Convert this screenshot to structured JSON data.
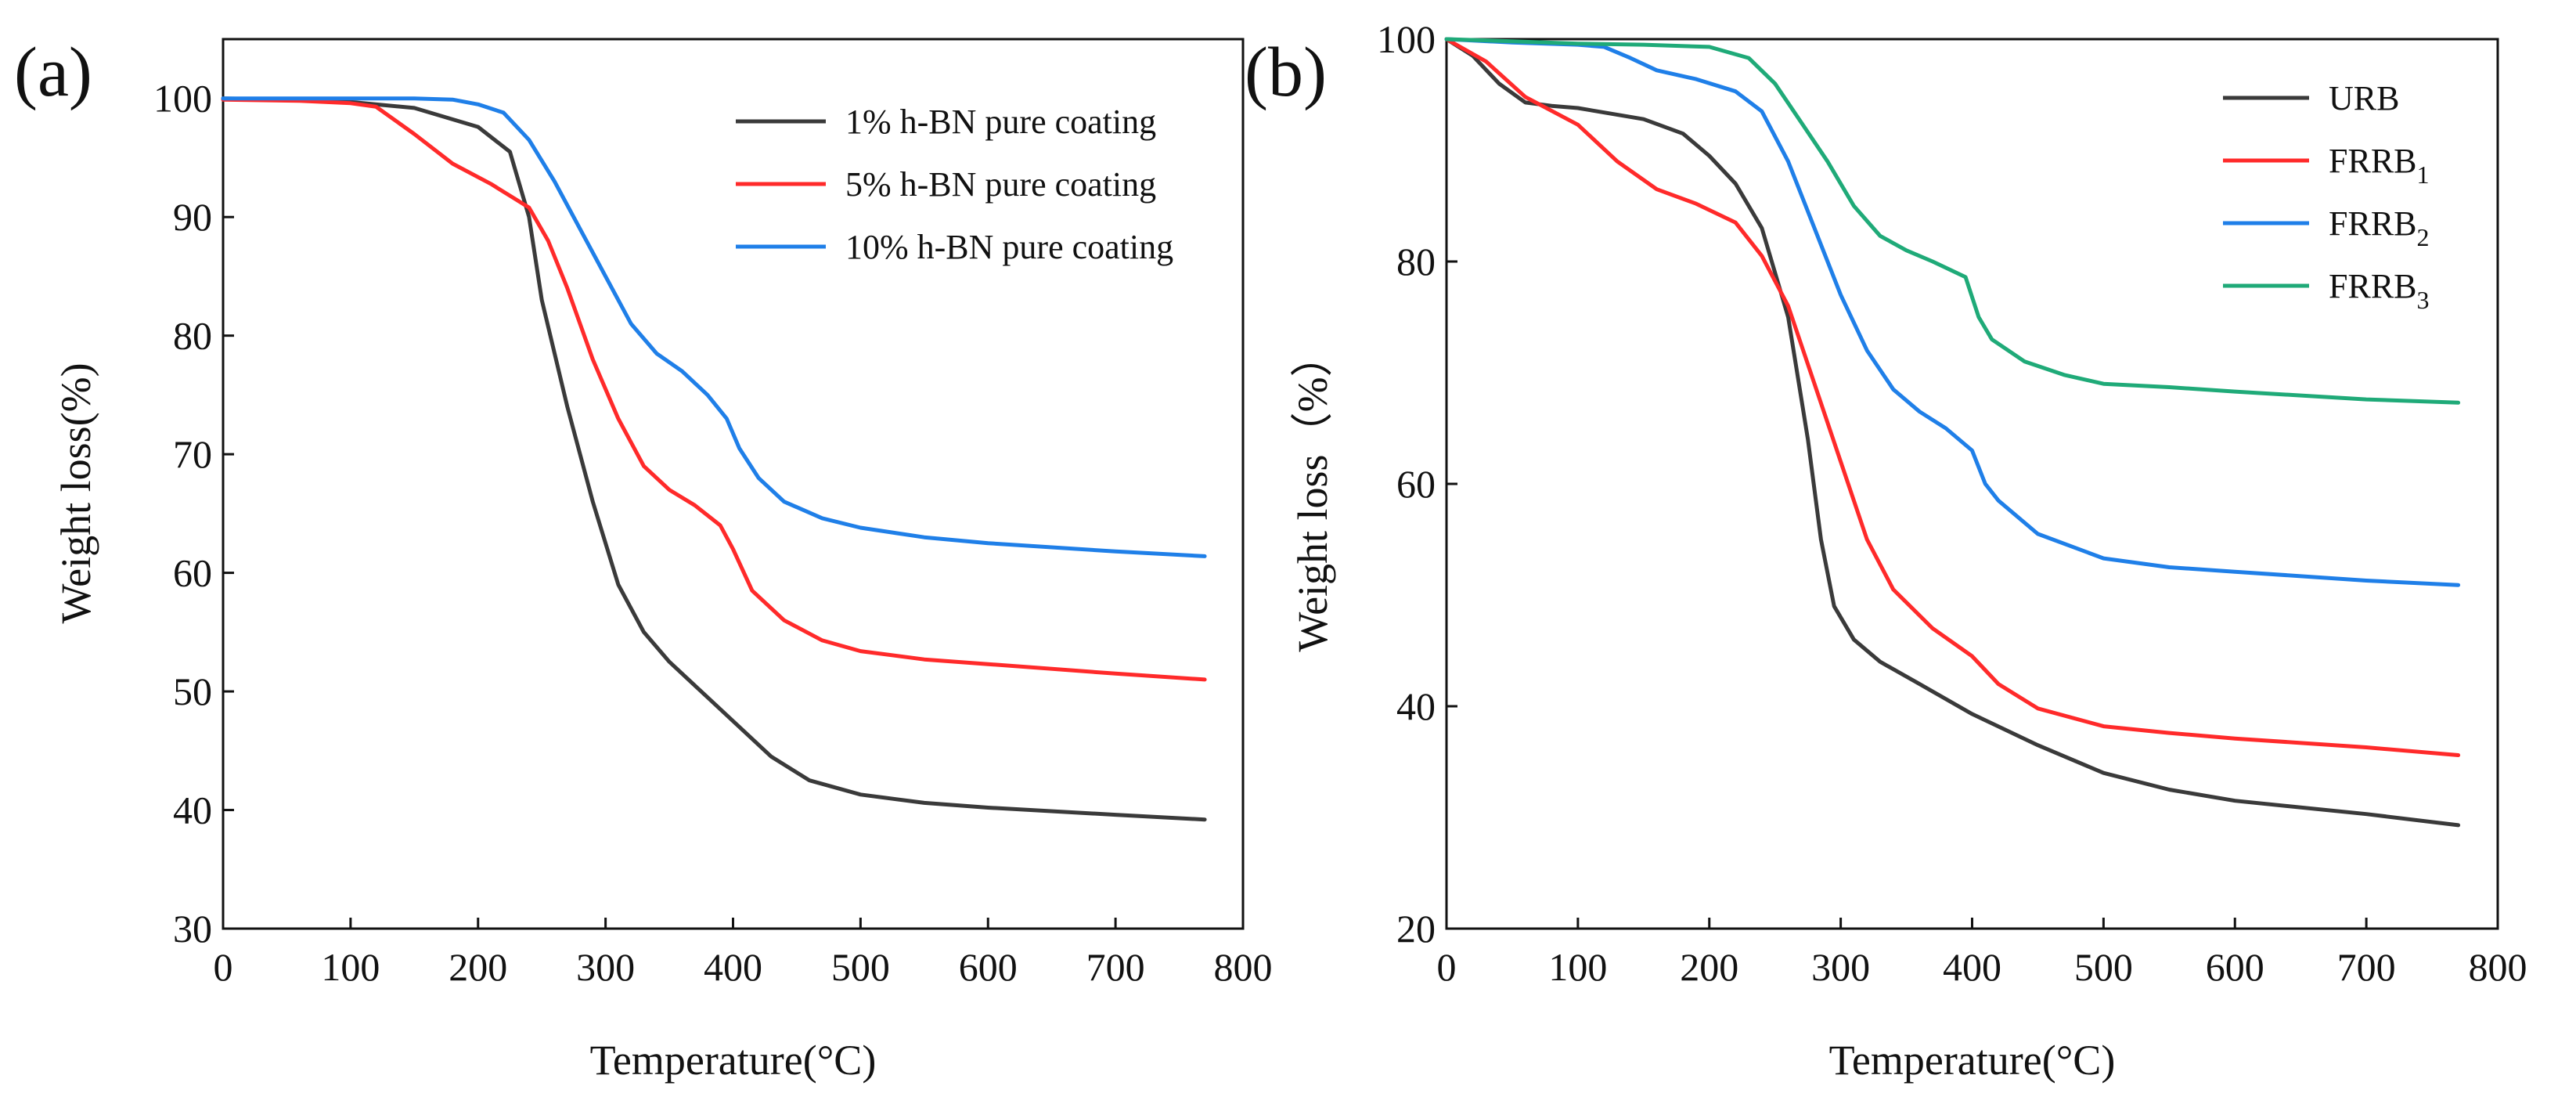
{
  "chart_data": [
    {
      "panel": "(a)",
      "type": "line",
      "title": "",
      "xlabel": "Temperature(°C)",
      "ylabel": "Weight loss(%)",
      "xlim": [
        0,
        800
      ],
      "ylim": [
        30,
        105
      ],
      "xticks": [
        0,
        100,
        200,
        300,
        400,
        500,
        600,
        700,
        800
      ],
      "yticks": [
        30,
        40,
        50,
        60,
        70,
        80,
        90,
        100
      ],
      "grid": false,
      "legend_position": "top-right",
      "series": [
        {
          "name": "1% h-BN pure coating",
          "label_main": "1% h-BN pure coating",
          "color": "#3a3a3a",
          "points": [
            [
              0,
              100
            ],
            [
              60,
              99.9
            ],
            [
              100,
              99.7
            ],
            [
              150,
              99.2
            ],
            [
              200,
              97.6
            ],
            [
              225,
              95.5
            ],
            [
              240,
              90
            ],
            [
              250,
              83
            ],
            [
              270,
              74
            ],
            [
              290,
              66
            ],
            [
              310,
              59
            ],
            [
              330,
              55
            ],
            [
              350,
              52.5
            ],
            [
              380,
              49.5
            ],
            [
              400,
              47.5
            ],
            [
              430,
              44.5
            ],
            [
              460,
              42.5
            ],
            [
              500,
              41.3
            ],
            [
              550,
              40.6
            ],
            [
              600,
              40.2
            ],
            [
              700,
              39.6
            ],
            [
              770,
              39.2
            ]
          ]
        },
        {
          "name": "5% h-BN pure coating",
          "label_main": "5% h-BN pure coating",
          "color": "#ff2a2a",
          "points": [
            [
              0,
              99.9
            ],
            [
              60,
              99.8
            ],
            [
              100,
              99.6
            ],
            [
              120,
              99.3
            ],
            [
              150,
              97
            ],
            [
              180,
              94.5
            ],
            [
              210,
              92.8
            ],
            [
              240,
              90.8
            ],
            [
              255,
              88
            ],
            [
              270,
              84
            ],
            [
              290,
              78
            ],
            [
              310,
              73
            ],
            [
              330,
              69
            ],
            [
              350,
              67
            ],
            [
              370,
              65.7
            ],
            [
              390,
              64
            ],
            [
              400,
              62
            ],
            [
              415,
              58.5
            ],
            [
              440,
              56
            ],
            [
              470,
              54.3
            ],
            [
              500,
              53.4
            ],
            [
              550,
              52.7
            ],
            [
              600,
              52.3
            ],
            [
              700,
              51.5
            ],
            [
              770,
              51
            ]
          ]
        },
        {
          "name": "10% h-BN pure coating",
          "label_main": "10% h-BN pure coating",
          "color": "#1f7fe8",
          "points": [
            [
              0,
              100
            ],
            [
              50,
              100
            ],
            [
              100,
              100
            ],
            [
              150,
              100
            ],
            [
              180,
              99.9
            ],
            [
              200,
              99.5
            ],
            [
              220,
              98.8
            ],
            [
              240,
              96.5
            ],
            [
              260,
              93
            ],
            [
              280,
              89
            ],
            [
              300,
              85
            ],
            [
              320,
              81
            ],
            [
              340,
              78.5
            ],
            [
              360,
              77
            ],
            [
              380,
              75
            ],
            [
              395,
              73
            ],
            [
              405,
              70.5
            ],
            [
              420,
              68
            ],
            [
              440,
              66
            ],
            [
              470,
              64.6
            ],
            [
              500,
              63.8
            ],
            [
              550,
              63
            ],
            [
              600,
              62.5
            ],
            [
              700,
              61.8
            ],
            [
              770,
              61.4
            ]
          ]
        }
      ]
    },
    {
      "panel": "(b)",
      "type": "line",
      "title": "",
      "xlabel": "Temperature(°C)",
      "ylabel": "Weight loss（%）",
      "xlim": [
        0,
        800
      ],
      "ylim": [
        20,
        100
      ],
      "xticks": [
        0,
        100,
        200,
        300,
        400,
        500,
        600,
        700,
        800
      ],
      "yticks": [
        20,
        40,
        60,
        80,
        100
      ],
      "grid": false,
      "legend_position": "top-right",
      "series": [
        {
          "name": "URB",
          "label_main": "URB",
          "label_sub": "",
          "color": "#3a3a3a",
          "points": [
            [
              0,
              100
            ],
            [
              20,
              98.5
            ],
            [
              40,
              96
            ],
            [
              60,
              94.3
            ],
            [
              80,
              94
            ],
            [
              100,
              93.8
            ],
            [
              150,
              92.8
            ],
            [
              180,
              91.5
            ],
            [
              200,
              89.5
            ],
            [
              220,
              87
            ],
            [
              240,
              83
            ],
            [
              260,
              75
            ],
            [
              275,
              64
            ],
            [
              285,
              55
            ],
            [
              295,
              49
            ],
            [
              310,
              46
            ],
            [
              330,
              44
            ],
            [
              360,
              42
            ],
            [
              400,
              39.3
            ],
            [
              450,
              36.5
            ],
            [
              500,
              34
            ],
            [
              550,
              32.5
            ],
            [
              600,
              31.5
            ],
            [
              700,
              30.3
            ],
            [
              770,
              29.3
            ]
          ]
        },
        {
          "name": "FRRB1",
          "label_main": "FRRB",
          "label_sub": "1",
          "color": "#ff2a2a",
          "points": [
            [
              0,
              100
            ],
            [
              30,
              98
            ],
            [
              60,
              94.8
            ],
            [
              100,
              92.3
            ],
            [
              130,
              89
            ],
            [
              160,
              86.5
            ],
            [
              190,
              85.2
            ],
            [
              220,
              83.5
            ],
            [
              240,
              80.5
            ],
            [
              260,
              76
            ],
            [
              280,
              69
            ],
            [
              300,
              62
            ],
            [
              320,
              55
            ],
            [
              340,
              50.5
            ],
            [
              370,
              47
            ],
            [
              400,
              44.5
            ],
            [
              420,
              42
            ],
            [
              450,
              39.8
            ],
            [
              500,
              38.2
            ],
            [
              550,
              37.6
            ],
            [
              600,
              37.1
            ],
            [
              700,
              36.3
            ],
            [
              770,
              35.6
            ]
          ]
        },
        {
          "name": "FRRB2",
          "label_main": "FRRB",
          "label_sub": "2",
          "color": "#1f7fe8",
          "points": [
            [
              0,
              100
            ],
            [
              50,
              99.7
            ],
            [
              100,
              99.5
            ],
            [
              120,
              99.3
            ],
            [
              140,
              98.3
            ],
            [
              160,
              97.2
            ],
            [
              190,
              96.4
            ],
            [
              220,
              95.3
            ],
            [
              240,
              93.5
            ],
            [
              260,
              89
            ],
            [
              280,
              83
            ],
            [
              300,
              77
            ],
            [
              320,
              72
            ],
            [
              340,
              68.5
            ],
            [
              360,
              66.5
            ],
            [
              380,
              65
            ],
            [
              400,
              63
            ],
            [
              410,
              60
            ],
            [
              420,
              58.5
            ],
            [
              450,
              55.5
            ],
            [
              500,
              53.3
            ],
            [
              550,
              52.5
            ],
            [
              600,
              52.1
            ],
            [
              700,
              51.3
            ],
            [
              770,
              50.9
            ]
          ]
        },
        {
          "name": "FRRB3",
          "label_main": "FRRB",
          "label_sub": "3",
          "color": "#1faa78",
          "points": [
            [
              0,
              100
            ],
            [
              50,
              99.8
            ],
            [
              100,
              99.6
            ],
            [
              150,
              99.5
            ],
            [
              200,
              99.3
            ],
            [
              230,
              98.3
            ],
            [
              250,
              96
            ],
            [
              270,
              92.5
            ],
            [
              290,
              89
            ],
            [
              310,
              85
            ],
            [
              330,
              82.3
            ],
            [
              350,
              81
            ],
            [
              370,
              80
            ],
            [
              395,
              78.6
            ],
            [
              405,
              75
            ],
            [
              415,
              73
            ],
            [
              440,
              71
            ],
            [
              470,
              69.8
            ],
            [
              500,
              69
            ],
            [
              550,
              68.7
            ],
            [
              600,
              68.3
            ],
            [
              700,
              67.6
            ],
            [
              770,
              67.3
            ]
          ]
        }
      ]
    }
  ]
}
